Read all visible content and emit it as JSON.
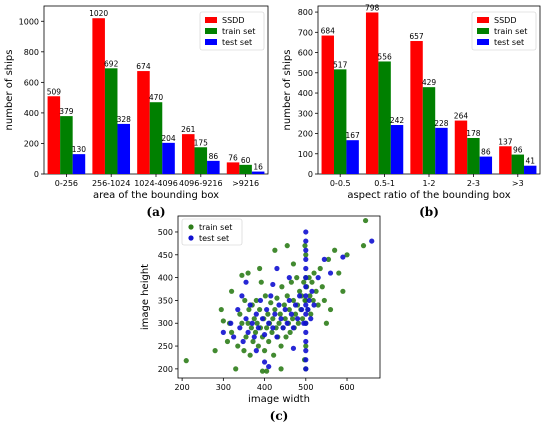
{
  "colors": {
    "ssdd": "#ff0000",
    "train": "#008000",
    "test": "#0000ff",
    "scatter_train": "#2e7d1a",
    "scatter_test": "#1010d0"
  },
  "chart_data": [
    {
      "type": "bar",
      "panel": "(a)",
      "xlabel": "area of the bounding box",
      "ylabel": "number of ships",
      "categories": [
        "0-256",
        "256-1024",
        "1024-4096",
        "4096-9216",
        ">9216"
      ],
      "series": [
        {
          "name": "SSDD",
          "values": [
            509,
            1020,
            674,
            261,
            76
          ]
        },
        {
          "name": "train set",
          "values": [
            379,
            692,
            470,
            175,
            60
          ]
        },
        {
          "name": "test set",
          "values": [
            130,
            328,
            204,
            86,
            16
          ]
        }
      ],
      "ylim": [
        0,
        1100
      ],
      "yticks": [
        0,
        200,
        400,
        600,
        800,
        1000
      ],
      "legend": "top-right"
    },
    {
      "type": "bar",
      "panel": "(b)",
      "xlabel": "aspect ratio of the bounding box",
      "ylabel": "number of ships",
      "categories": [
        "0-0.5",
        "0.5-1",
        "1-2",
        "2-3",
        ">3"
      ],
      "series": [
        {
          "name": "SSDD",
          "values": [
            684,
            798,
            657,
            264,
            137
          ]
        },
        {
          "name": "train set",
          "values": [
            517,
            556,
            429,
            178,
            96
          ]
        },
        {
          "name": "test set",
          "values": [
            167,
            242,
            228,
            86,
            41
          ]
        }
      ],
      "ylim": [
        0,
        830
      ],
      "yticks": [
        0,
        100,
        200,
        300,
        400,
        500,
        600,
        700,
        800
      ],
      "legend": "top-right"
    },
    {
      "type": "scatter",
      "panel": "(c)",
      "xlabel": "image width",
      "ylabel": "image height",
      "xlim": [
        190,
        680
      ],
      "ylim": [
        180,
        535
      ],
      "xticks": [
        200,
        300,
        400,
        500,
        600
      ],
      "yticks": [
        200,
        250,
        300,
        350,
        400,
        450,
        500
      ],
      "legend": "top-left",
      "series": [
        {
          "name": "train set",
          "points": [
            [
              210,
              218
            ],
            [
              280,
              240
            ],
            [
              295,
              330
            ],
            [
              300,
              305
            ],
            [
              310,
              260
            ],
            [
              315,
              300
            ],
            [
              320,
              280
            ],
            [
              330,
              200
            ],
            [
              335,
              250
            ],
            [
              340,
              320
            ],
            [
              345,
              300
            ],
            [
              350,
              240
            ],
            [
              352,
              350
            ],
            [
              355,
              270
            ],
            [
              360,
              300
            ],
            [
              362,
              330
            ],
            [
              365,
              230
            ],
            [
              368,
              290
            ],
            [
              370,
              340
            ],
            [
              372,
              260
            ],
            [
              375,
              310
            ],
            [
              378,
              280
            ],
            [
              380,
              350
            ],
            [
              382,
              300
            ],
            [
              385,
              250
            ],
            [
              388,
              330
            ],
            [
              390,
              290
            ],
            [
              392,
              390
            ],
            [
              395,
              270
            ],
            [
              398,
              310
            ],
            [
              400,
              240
            ],
            [
              402,
              360
            ],
            [
              405,
              290
            ],
            [
              408,
              320
            ],
            [
              410,
              260
            ],
            [
              412,
              300
            ],
            [
              415,
              345
            ],
            [
              418,
              280
            ],
            [
              420,
              310
            ],
            [
              422,
              230
            ],
            [
              425,
              330
            ],
            [
              428,
              290
            ],
            [
              430,
              355
            ],
            [
              432,
              270
            ],
            [
              435,
              300
            ],
            [
              438,
              320
            ],
            [
              440,
              250
            ],
            [
              442,
              380
            ],
            [
              445,
              290
            ],
            [
              448,
              340
            ],
            [
              450,
              310
            ],
            [
              452,
              270
            ],
            [
              455,
              360
            ],
            [
              458,
              300
            ],
            [
              460,
              330
            ],
            [
              462,
              280
            ],
            [
              465,
              390
            ],
            [
              468,
              310
            ],
            [
              470,
              350
            ],
            [
              472,
              290
            ],
            [
              475,
              320
            ],
            [
              478,
              400
            ],
            [
              480,
              340
            ],
            [
              482,
              300
            ],
            [
              485,
              370
            ],
            [
              488,
              330
            ],
            [
              490,
              360
            ],
            [
              492,
              310
            ],
            [
              495,
              390
            ],
            [
              498,
              350
            ],
            [
              502,
              380
            ],
            [
              505,
              330
            ],
            [
              508,
              400
            ],
            [
              510,
              360
            ],
            [
              512,
              320
            ],
            [
              515,
              390
            ],
            [
              518,
              350
            ],
            [
              520,
              410
            ],
            [
              525,
              370
            ],
            [
              530,
              340
            ],
            [
              535,
              420
            ],
            [
              540,
              380
            ],
            [
              545,
              350
            ],
            [
              550,
              300
            ],
            [
              555,
              440
            ],
            [
              560,
              330
            ],
            [
              570,
              460
            ],
            [
              580,
              410
            ],
            [
              590,
              370
            ],
            [
              600,
              450
            ],
            [
              640,
              470
            ],
            [
              645,
              525
            ],
            [
              388,
              420
            ],
            [
              345,
              405
            ],
            [
              425,
              460
            ],
            [
              470,
              430
            ],
            [
              440,
              200
            ],
            [
              405,
              195
            ],
            [
              360,
              410
            ],
            [
              455,
              470
            ],
            [
              500,
              200
            ],
            [
              500,
              250
            ],
            [
              500,
              300
            ],
            [
              500,
              350
            ],
            [
              500,
              400
            ],
            [
              500,
              450
            ],
            [
              498,
              470
            ],
            [
              497,
              220
            ],
            [
              320,
              370
            ],
            [
              395,
              195
            ]
          ]
        },
        {
          "name": "test set",
          "points": [
            [
              300,
              280
            ],
            [
              318,
              300
            ],
            [
              325,
              270
            ],
            [
              335,
              330
            ],
            [
              340,
              290
            ],
            [
              348,
              260
            ],
            [
              355,
              310
            ],
            [
              360,
              280
            ],
            [
              365,
              340
            ],
            [
              370,
              300
            ],
            [
              375,
              270
            ],
            [
              380,
              320
            ],
            [
              385,
              290
            ],
            [
              390,
              350
            ],
            [
              395,
              310
            ],
            [
              400,
              275
            ],
            [
              405,
              330
            ],
            [
              410,
              300
            ],
            [
              415,
              360
            ],
            [
              420,
              290
            ],
            [
              425,
              320
            ],
            [
              430,
              270
            ],
            [
              435,
              340
            ],
            [
              440,
              310
            ],
            [
              445,
              290
            ],
            [
              450,
              330
            ],
            [
              455,
              300
            ],
            [
              460,
              350
            ],
            [
              465,
              320
            ],
            [
              470,
              290
            ],
            [
              475,
              340
            ],
            [
              480,
              310
            ],
            [
              485,
              360
            ],
            [
              490,
              330
            ],
            [
              495,
              300
            ],
            [
              500,
              280
            ],
            [
              500,
              300
            ],
            [
              500,
              320
            ],
            [
              500,
              340
            ],
            [
              500,
              360
            ],
            [
              500,
              380
            ],
            [
              500,
              400
            ],
            [
              500,
              420
            ],
            [
              500,
              440
            ],
            [
              500,
              460
            ],
            [
              500,
              480
            ],
            [
              500,
              500
            ],
            [
              500,
              260
            ],
            [
              500,
              240
            ],
            [
              500,
              220
            ],
            [
              500,
              200
            ],
            [
              505,
              330
            ],
            [
              508,
              350
            ],
            [
              512,
              310
            ],
            [
              515,
              370
            ],
            [
              520,
              340
            ],
            [
              530,
              400
            ],
            [
              545,
              440
            ],
            [
              560,
              410
            ],
            [
              590,
              445
            ],
            [
              660,
              480
            ],
            [
              355,
              390
            ],
            [
              400,
              215
            ],
            [
              380,
              240
            ],
            [
              430,
              420
            ],
            [
              460,
              400
            ],
            [
              410,
              205
            ],
            [
              345,
              360
            ],
            [
              470,
              245
            ],
            [
              420,
              385
            ]
          ]
        }
      ]
    }
  ]
}
